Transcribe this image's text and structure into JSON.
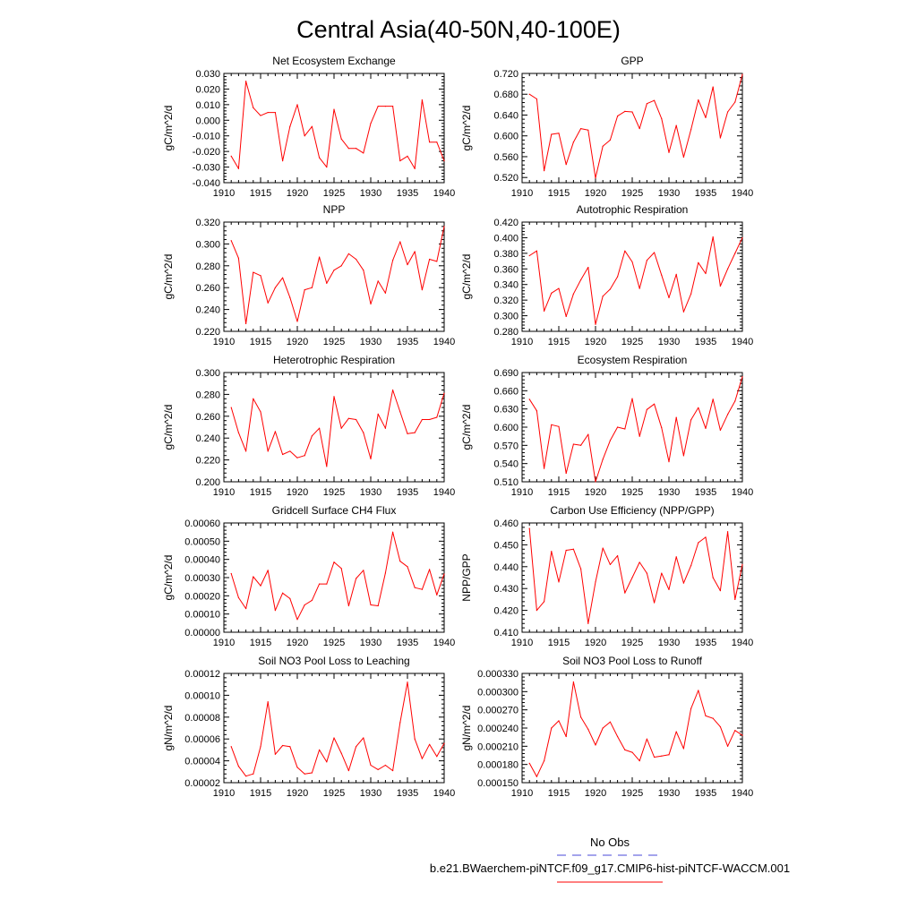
{
  "title": "Central Asia(40-50N,40-100E)",
  "colors": {
    "model": "#ff0000",
    "obs": "#4a4ad8",
    "axis": "#000000"
  },
  "legend": {
    "obs_label": "No Obs",
    "model_label": "b.e21.BWaerchem-piNTCF.f09_g17.CMIP6-hist-piNTCF-WACCM.001"
  },
  "chart_data": [
    {
      "type": "line",
      "title": "Net Ecosystem Exchange",
      "ylabel": "gC/m^2/d",
      "xlim": [
        1910,
        1940
      ],
      "ylim": [
        -0.04,
        0.03
      ],
      "xticks": [
        1910,
        1915,
        1920,
        1925,
        1930,
        1935,
        1940
      ],
      "xtick_labels": [
        "1910",
        "1915",
        "1920",
        "1925",
        "1930",
        "1935",
        "1940"
      ],
      "yticks": [
        -0.04,
        -0.03,
        -0.02,
        -0.01,
        0.0,
        0.01,
        0.02,
        0.03
      ],
      "ytick_labels": [
        "-0.040",
        "-0.030",
        "-0.020",
        "-0.010",
        "0.000",
        "0.010",
        "0.020",
        "0.030"
      ],
      "x": [
        1911,
        1912,
        1913,
        1914,
        1915,
        1916,
        1917,
        1918,
        1919,
        1920,
        1921,
        1922,
        1923,
        1924,
        1925,
        1926,
        1927,
        1928,
        1929,
        1930,
        1931,
        1932,
        1933,
        1934,
        1935,
        1936,
        1937,
        1938,
        1939,
        1940
      ],
      "values": [
        -0.023,
        -0.031,
        0.025,
        0.008,
        0.003,
        0.005,
        0.005,
        -0.026,
        -0.004,
        0.01,
        -0.01,
        -0.004,
        -0.024,
        -0.03,
        0.007,
        -0.012,
        -0.018,
        -0.018,
        -0.021,
        -0.002,
        0.009,
        0.009,
        0.009,
        -0.026,
        -0.023,
        -0.031,
        0.013,
        -0.014,
        -0.014,
        -0.026
      ]
    },
    {
      "type": "line",
      "title": "GPP",
      "ylabel": "gC/m^2/d",
      "xlim": [
        1910,
        1940
      ],
      "ylim": [
        0.51,
        0.72
      ],
      "xticks": [
        1910,
        1915,
        1920,
        1925,
        1930,
        1935,
        1940
      ],
      "xtick_labels": [
        "1910",
        "1915",
        "1920",
        "1925",
        "1930",
        "1935",
        "1940"
      ],
      "yticks": [
        0.52,
        0.56,
        0.6,
        0.64,
        0.68,
        0.72
      ],
      "ytick_labels": [
        "0.520",
        "0.560",
        "0.600",
        "0.640",
        "0.680",
        "0.720"
      ],
      "x": [
        1911,
        1912,
        1913,
        1914,
        1915,
        1916,
        1917,
        1918,
        1919,
        1920,
        1921,
        1922,
        1923,
        1924,
        1925,
        1926,
        1927,
        1928,
        1929,
        1930,
        1931,
        1932,
        1933,
        1934,
        1935,
        1936,
        1937,
        1938,
        1939,
        1940
      ],
      "values": [
        0.68,
        0.671,
        0.533,
        0.603,
        0.605,
        0.545,
        0.588,
        0.614,
        0.611,
        0.519,
        0.58,
        0.592,
        0.638,
        0.647,
        0.646,
        0.614,
        0.662,
        0.668,
        0.633,
        0.568,
        0.62,
        0.559,
        0.612,
        0.669,
        0.635,
        0.694,
        0.596,
        0.646,
        0.665,
        0.718
      ]
    },
    {
      "type": "line",
      "title": "NPP",
      "ylabel": "gC/m^2/d",
      "xlim": [
        1910,
        1940
      ],
      "ylim": [
        0.22,
        0.32
      ],
      "xticks": [
        1910,
        1915,
        1920,
        1925,
        1930,
        1935,
        1940
      ],
      "xtick_labels": [
        "1910",
        "1915",
        "1920",
        "1925",
        "1930",
        "1935",
        "1940"
      ],
      "yticks": [
        0.22,
        0.24,
        0.26,
        0.28,
        0.3,
        0.32
      ],
      "ytick_labels": [
        "0.220",
        "0.240",
        "0.260",
        "0.280",
        "0.300",
        "0.320"
      ],
      "x": [
        1911,
        1912,
        1913,
        1914,
        1915,
        1916,
        1917,
        1918,
        1919,
        1920,
        1921,
        1922,
        1923,
        1924,
        1925,
        1926,
        1927,
        1928,
        1929,
        1930,
        1931,
        1932,
        1933,
        1934,
        1935,
        1936,
        1937,
        1938,
        1939,
        1940
      ],
      "values": [
        0.303,
        0.287,
        0.227,
        0.274,
        0.271,
        0.246,
        0.26,
        0.269,
        0.251,
        0.229,
        0.258,
        0.26,
        0.288,
        0.264,
        0.276,
        0.28,
        0.291,
        0.286,
        0.276,
        0.245,
        0.266,
        0.255,
        0.285,
        0.302,
        0.281,
        0.293,
        0.258,
        0.286,
        0.284,
        0.316
      ]
    },
    {
      "type": "line",
      "title": "Autotrophic Respiration",
      "ylabel": "gC/m^2/d",
      "xlim": [
        1910,
        1940
      ],
      "ylim": [
        0.28,
        0.42
      ],
      "xticks": [
        1910,
        1915,
        1920,
        1925,
        1930,
        1935,
        1940
      ],
      "xtick_labels": [
        "1910",
        "1915",
        "1920",
        "1925",
        "1930",
        "1935",
        "1940"
      ],
      "yticks": [
        0.28,
        0.3,
        0.32,
        0.34,
        0.36,
        0.38,
        0.4,
        0.42
      ],
      "ytick_labels": [
        "0.280",
        "0.300",
        "0.320",
        "0.340",
        "0.360",
        "0.380",
        "0.400",
        "0.420"
      ],
      "x": [
        1911,
        1912,
        1913,
        1914,
        1915,
        1916,
        1917,
        1918,
        1919,
        1920,
        1921,
        1922,
        1923,
        1924,
        1925,
        1926,
        1927,
        1928,
        1929,
        1930,
        1931,
        1932,
        1933,
        1934,
        1935,
        1936,
        1937,
        1938,
        1939,
        1940
      ],
      "values": [
        0.377,
        0.383,
        0.306,
        0.329,
        0.335,
        0.299,
        0.328,
        0.346,
        0.362,
        0.289,
        0.325,
        0.334,
        0.35,
        0.383,
        0.369,
        0.335,
        0.371,
        0.381,
        0.352,
        0.323,
        0.353,
        0.305,
        0.328,
        0.368,
        0.354,
        0.401,
        0.338,
        0.36,
        0.38,
        0.4
      ]
    },
    {
      "type": "line",
      "title": "Heterotrophic Respiration",
      "ylabel": "gC/m^2/d",
      "xlim": [
        1910,
        1940
      ],
      "ylim": [
        0.2,
        0.3
      ],
      "xticks": [
        1910,
        1915,
        1920,
        1925,
        1930,
        1935,
        1940
      ],
      "xtick_labels": [
        "1910",
        "1915",
        "1920",
        "1925",
        "1930",
        "1935",
        "1940"
      ],
      "yticks": [
        0.2,
        0.22,
        0.24,
        0.26,
        0.28,
        0.3
      ],
      "ytick_labels": [
        "0.200",
        "0.220",
        "0.240",
        "0.260",
        "0.280",
        "0.300"
      ],
      "x": [
        1911,
        1912,
        1913,
        1914,
        1915,
        1916,
        1917,
        1918,
        1919,
        1920,
        1921,
        1922,
        1923,
        1924,
        1925,
        1926,
        1927,
        1928,
        1929,
        1930,
        1931,
        1932,
        1933,
        1934,
        1935,
        1936,
        1937,
        1938,
        1939,
        1940
      ],
      "values": [
        0.268,
        0.245,
        0.228,
        0.276,
        0.264,
        0.228,
        0.246,
        0.225,
        0.228,
        0.222,
        0.224,
        0.242,
        0.249,
        0.214,
        0.278,
        0.249,
        0.258,
        0.257,
        0.245,
        0.221,
        0.262,
        0.249,
        0.284,
        0.264,
        0.244,
        0.245,
        0.257,
        0.257,
        0.259,
        0.281
      ]
    },
    {
      "type": "line",
      "title": "Ecosystem Respiration",
      "ylabel": "gC/m^2/d",
      "xlim": [
        1910,
        1940
      ],
      "ylim": [
        0.51,
        0.69
      ],
      "xticks": [
        1910,
        1915,
        1920,
        1925,
        1930,
        1935,
        1940
      ],
      "xtick_labels": [
        "1910",
        "1915",
        "1920",
        "1925",
        "1930",
        "1935",
        "1940"
      ],
      "yticks": [
        0.51,
        0.54,
        0.57,
        0.6,
        0.63,
        0.66,
        0.69
      ],
      "ytick_labels": [
        "0.510",
        "0.540",
        "0.570",
        "0.600",
        "0.630",
        "0.660",
        "0.690"
      ],
      "x": [
        1911,
        1912,
        1913,
        1914,
        1915,
        1916,
        1917,
        1918,
        1919,
        1920,
        1921,
        1922,
        1923,
        1924,
        1925,
        1926,
        1927,
        1928,
        1929,
        1930,
        1931,
        1932,
        1933,
        1934,
        1935,
        1936,
        1937,
        1938,
        1939,
        1940
      ],
      "values": [
        0.646,
        0.627,
        0.532,
        0.604,
        0.601,
        0.524,
        0.572,
        0.57,
        0.588,
        0.51,
        0.547,
        0.578,
        0.6,
        0.597,
        0.647,
        0.585,
        0.629,
        0.638,
        0.599,
        0.543,
        0.616,
        0.553,
        0.612,
        0.632,
        0.598,
        0.646,
        0.595,
        0.621,
        0.643,
        0.683
      ]
    },
    {
      "type": "line",
      "title": "Gridcell Surface CH4 Flux",
      "ylabel": "gC/m^2/d",
      "xlim": [
        1910,
        1940
      ],
      "ylim": [
        0.0,
        0.0006
      ],
      "xticks": [
        1910,
        1915,
        1920,
        1925,
        1930,
        1935,
        1940
      ],
      "xtick_labels": [
        "1910",
        "1915",
        "1920",
        "1925",
        "1930",
        "1935",
        "1940"
      ],
      "yticks": [
        0.0,
        0.0001,
        0.0002,
        0.0003,
        0.0004,
        0.0005,
        0.0006
      ],
      "ytick_labels": [
        "0.00000",
        "0.00010",
        "0.00020",
        "0.00030",
        "0.00040",
        "0.00050",
        "0.00060"
      ],
      "x": [
        1911,
        1912,
        1913,
        1914,
        1915,
        1916,
        1917,
        1918,
        1919,
        1920,
        1921,
        1922,
        1923,
        1924,
        1925,
        1926,
        1927,
        1928,
        1929,
        1930,
        1931,
        1932,
        1933,
        1934,
        1935,
        1936,
        1937,
        1938,
        1939,
        1940
      ],
      "values": [
        0.000322,
        0.00019,
        0.00013,
        0.000305,
        0.000255,
        0.00034,
        0.00012,
        0.000215,
        0.000185,
        7e-05,
        0.00015,
        0.000175,
        0.000265,
        0.000265,
        0.000385,
        0.00035,
        0.000145,
        0.000295,
        0.00034,
        0.00015,
        0.000145,
        0.000325,
        0.00055,
        0.00039,
        0.00036,
        0.000245,
        0.000235,
        0.000345,
        0.000205,
        0.00032
      ]
    },
    {
      "type": "line",
      "title": "Carbon Use Efficiency (NPP/GPP)",
      "ylabel": "NPP/GPP",
      "xlim": [
        1910,
        1940
      ],
      "ylim": [
        0.41,
        0.46
      ],
      "xticks": [
        1910,
        1915,
        1920,
        1925,
        1930,
        1935,
        1940
      ],
      "xtick_labels": [
        "1910",
        "1915",
        "1920",
        "1925",
        "1930",
        "1935",
        "1940"
      ],
      "yticks": [
        0.41,
        0.42,
        0.43,
        0.44,
        0.45,
        0.46
      ],
      "ytick_labels": [
        "0.410",
        "0.420",
        "0.430",
        "0.440",
        "0.450",
        "0.460"
      ],
      "x": [
        1911,
        1912,
        1913,
        1914,
        1915,
        1916,
        1917,
        1918,
        1919,
        1920,
        1921,
        1922,
        1923,
        1924,
        1925,
        1926,
        1927,
        1928,
        1929,
        1930,
        1931,
        1932,
        1933,
        1934,
        1935,
        1936,
        1937,
        1938,
        1939,
        1940
      ],
      "values": [
        0.4575,
        0.42,
        0.424,
        0.447,
        0.433,
        0.4475,
        0.448,
        0.439,
        0.414,
        0.433,
        0.4485,
        0.441,
        0.445,
        0.428,
        0.435,
        0.442,
        0.437,
        0.4235,
        0.437,
        0.4295,
        0.4445,
        0.4325,
        0.4405,
        0.451,
        0.4535,
        0.435,
        0.429,
        0.456,
        0.425,
        0.441
      ]
    },
    {
      "type": "line",
      "title": "Soil NO3 Pool Loss to Leaching",
      "ylabel": "gN/m^2/d",
      "xlim": [
        1910,
        1940
      ],
      "ylim": [
        2e-05,
        0.00012
      ],
      "xticks": [
        1910,
        1915,
        1920,
        1925,
        1930,
        1935,
        1940
      ],
      "xtick_labels": [
        "1910",
        "1915",
        "1920",
        "1925",
        "1930",
        "1935",
        "1940"
      ],
      "yticks": [
        2e-05,
        4e-05,
        6e-05,
        8e-05,
        0.0001,
        0.00012
      ],
      "ytick_labels": [
        "0.00002",
        "0.00004",
        "0.00006",
        "0.00008",
        "0.00010",
        "0.00012"
      ],
      "x": [
        1911,
        1912,
        1913,
        1914,
        1915,
        1916,
        1917,
        1918,
        1919,
        1920,
        1921,
        1922,
        1923,
        1924,
        1925,
        1926,
        1927,
        1928,
        1929,
        1930,
        1931,
        1932,
        1933,
        1934,
        1935,
        1936,
        1937,
        1938,
        1939,
        1940
      ],
      "values": [
        5.3e-05,
        3.5e-05,
        2.6e-05,
        2.8e-05,
        5.3e-05,
        9.4e-05,
        4.6e-05,
        5.4e-05,
        5.3e-05,
        3.4e-05,
        2.8e-05,
        2.9e-05,
        5e-05,
        3.9e-05,
        6.1e-05,
        4.7e-05,
        3.1e-05,
        5.3e-05,
        6.1e-05,
        3.6e-05,
        3.2e-05,
        3.6e-05,
        3.1e-05,
        7.5e-05,
        0.000112,
        6e-05,
        4.2e-05,
        5.5e-05,
        4.4e-05,
        5.6e-05
      ]
    },
    {
      "type": "line",
      "title": "Soil NO3 Pool Loss to Runoff",
      "ylabel": "gN/m^2/d",
      "xlim": [
        1910,
        1940
      ],
      "ylim": [
        0.00015,
        0.00033
      ],
      "xticks": [
        1910,
        1915,
        1920,
        1925,
        1930,
        1935,
        1940
      ],
      "xtick_labels": [
        "1910",
        "1915",
        "1920",
        "1925",
        "1930",
        "1935",
        "1940"
      ],
      "yticks": [
        0.00015,
        0.00018,
        0.00021,
        0.00024,
        0.00027,
        0.0003,
        0.00033
      ],
      "ytick_labels": [
        "0.000150",
        "0.000180",
        "0.000210",
        "0.000240",
        "0.000270",
        "0.000300",
        "0.000330"
      ],
      "x": [
        1911,
        1912,
        1913,
        1914,
        1915,
        1916,
        1917,
        1918,
        1919,
        1920,
        1921,
        1922,
        1923,
        1924,
        1925,
        1926,
        1927,
        1928,
        1929,
        1930,
        1931,
        1932,
        1933,
        1934,
        1935,
        1936,
        1937,
        1938,
        1939,
        1940
      ],
      "values": [
        0.000182,
        0.00016,
        0.000186,
        0.00024,
        0.000252,
        0.000226,
        0.000316,
        0.000258,
        0.000238,
        0.000212,
        0.00024,
        0.00025,
        0.000226,
        0.000204,
        0.0002,
        0.000186,
        0.000222,
        0.000192,
        0.000194,
        0.000196,
        0.000234,
        0.000206,
        0.000272,
        0.000302,
        0.00026,
        0.000256,
        0.000242,
        0.00021,
        0.000236,
        0.000228
      ]
    }
  ]
}
